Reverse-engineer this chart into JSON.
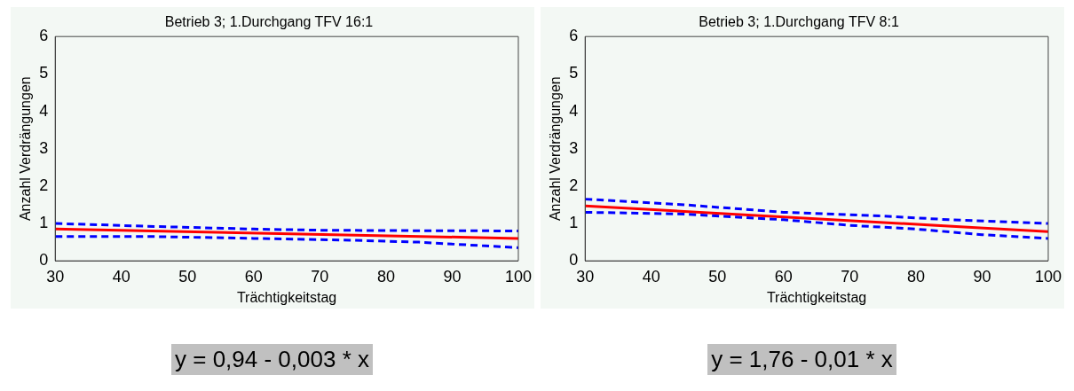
{
  "chart_data": [
    {
      "type": "line",
      "title": "Betrieb 3; 1.Durchgang TFV 16:1",
      "xlabel": "Trächtigkeitstag",
      "ylabel": "Anzahl Verdrängungen",
      "xlim": [
        30,
        100
      ],
      "ylim": [
        0,
        6
      ],
      "xticks": [
        30,
        40,
        50,
        60,
        70,
        80,
        90,
        100
      ],
      "yticks": [
        0,
        1,
        2,
        3,
        4,
        5,
        6
      ],
      "grid": false,
      "legend": false,
      "marker": "none",
      "annotations": [
        "y = 0,94 - 0,003 * x"
      ],
      "series": [
        {
          "color": "#0000ff",
          "line_style": "dashed",
          "x": [
            30,
            45,
            60,
            70,
            80,
            100
          ],
          "values": [
            1.0,
            0.92,
            0.85,
            0.82,
            0.81,
            0.8
          ]
        },
        {
          "color": "#0000ff",
          "line_style": "dashed",
          "x": [
            30,
            45,
            60,
            75,
            85,
            95,
            100
          ],
          "values": [
            0.65,
            0.65,
            0.6,
            0.55,
            0.5,
            0.4,
            0.35
          ]
        },
        {
          "color": "#ff0000",
          "line_style": "solid",
          "x": [
            30,
            100
          ],
          "values": [
            0.85,
            0.6
          ]
        }
      ]
    },
    {
      "type": "line",
      "title": "Betrieb 3; 1.Durchgang TFV 8:1",
      "xlabel": "Trächtigkeitstag",
      "ylabel": "Anzahl Verdrängungen",
      "xlim": [
        30,
        100
      ],
      "ylim": [
        0,
        6
      ],
      "xticks": [
        30,
        40,
        50,
        60,
        70,
        80,
        90,
        100
      ],
      "yticks": [
        0,
        1,
        2,
        3,
        4,
        5,
        6
      ],
      "grid": false,
      "legend": false,
      "marker": "none",
      "annotations": [
        "y = 1,76 - 0,01 * x"
      ],
      "series": [
        {
          "color": "#0000ff",
          "line_style": "dashed",
          "x": [
            30,
            45,
            60,
            75,
            85,
            100
          ],
          "values": [
            1.65,
            1.5,
            1.3,
            1.2,
            1.1,
            1.0
          ]
        },
        {
          "color": "#0000ff",
          "line_style": "dashed",
          "x": [
            30,
            45,
            60,
            70,
            80,
            90,
            100
          ],
          "values": [
            1.3,
            1.25,
            1.1,
            0.95,
            0.85,
            0.7,
            0.6
          ]
        },
        {
          "color": "#ff0000",
          "line_style": "solid",
          "x": [
            30,
            100
          ],
          "values": [
            1.47,
            0.78
          ]
        }
      ]
    }
  ]
}
